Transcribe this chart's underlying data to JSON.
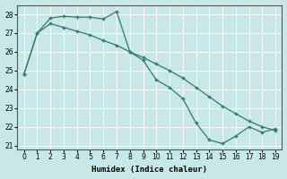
{
  "title": "",
  "xlabel": "Humidex (Indice chaleur)",
  "ylabel": "",
  "background_color": "#c8e8e8",
  "line_color": "#2d7a6e",
  "grid_color": "#ffffff",
  "x": [
    0,
    1,
    2,
    3,
    4,
    5,
    6,
    7,
    8,
    9,
    10,
    11,
    12,
    13,
    14,
    15,
    16,
    17,
    18,
    19
  ],
  "line1": [
    24.8,
    27.0,
    27.8,
    27.9,
    27.85,
    27.85,
    27.75,
    28.15,
    26.0,
    25.55,
    24.5,
    24.1,
    23.5,
    22.2,
    21.3,
    21.1,
    21.5,
    22.0,
    21.7,
    21.9
  ],
  "line2": [
    24.8,
    27.0,
    27.5,
    27.3,
    27.1,
    26.9,
    26.6,
    26.35,
    26.0,
    25.7,
    25.35,
    25.0,
    24.6,
    24.1,
    23.6,
    23.1,
    22.7,
    22.3,
    22.0,
    21.8
  ],
  "ylim": [
    20.8,
    28.5
  ],
  "xlim": [
    -0.5,
    19.5
  ],
  "yticks": [
    21,
    22,
    23,
    24,
    25,
    26,
    27,
    28
  ],
  "xticks": [
    0,
    1,
    2,
    3,
    4,
    5,
    6,
    7,
    8,
    9,
    10,
    11,
    12,
    13,
    14,
    15,
    16,
    17,
    18,
    19
  ]
}
